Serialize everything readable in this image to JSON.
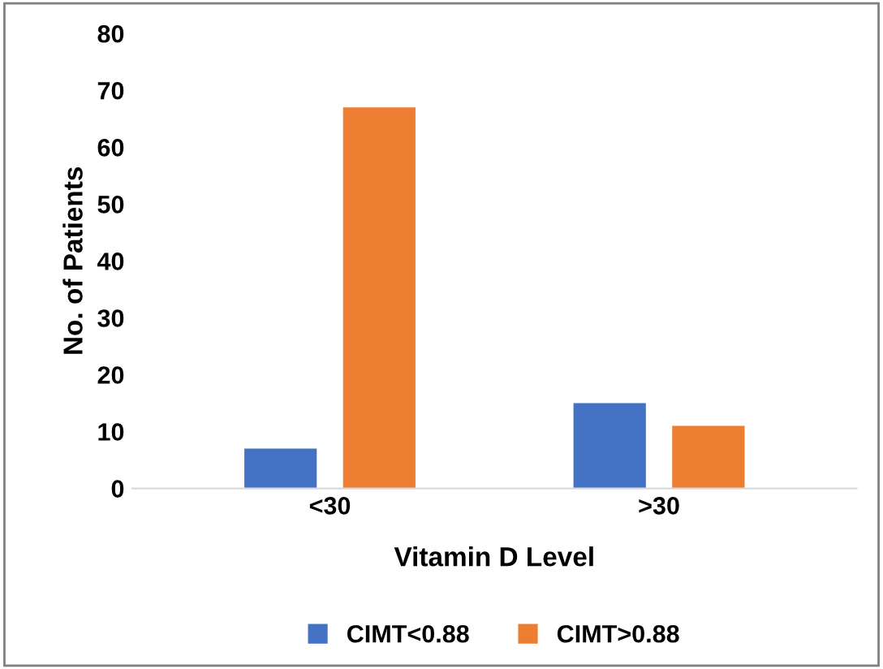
{
  "chart_data": {
    "type": "bar",
    "categories": [
      "<30",
      ">30"
    ],
    "series": [
      {
        "name": "CIMT<0.88",
        "color": "#4472c4",
        "values": [
          7,
          15
        ]
      },
      {
        "name": "CIMT>0.88",
        "color": "#ed7d31",
        "values": [
          67,
          11
        ]
      }
    ],
    "xlabel": "Vitamin D Level",
    "ylabel": "No. of Patients",
    "ylim": [
      0,
      80
    ],
    "yticks": [
      0,
      10,
      20,
      30,
      40,
      50,
      60,
      70,
      80
    ],
    "grid": false,
    "legend": "bottom"
  }
}
